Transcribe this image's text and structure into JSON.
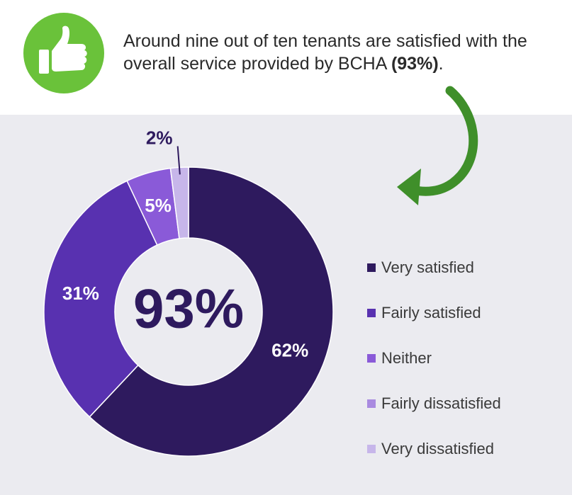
{
  "header": {
    "text": "Around nine out of ten tenants are satisfied with the overall service provided by BCHA",
    "highlight": "(93%)",
    "end": ".",
    "icon": "thumbs-up-icon",
    "arrow_icon": "curved-arrow-icon"
  },
  "colors": {
    "icon_green": "#6ac23a",
    "arrow_green": "#3f8f2a",
    "panel_bg": "#ebebf0"
  },
  "chart_data": {
    "type": "pie",
    "variant": "donut",
    "center_label": "93%",
    "categories": [
      "Very satisfied",
      "Fairly satisfied",
      "Neither",
      "Fairly dissatisfied",
      "Very dissatisfied"
    ],
    "values": [
      62,
      31,
      5,
      0,
      2
    ],
    "labels": [
      "62%",
      "31%",
      "5%",
      "",
      "2%"
    ],
    "colors": [
      "#2e1a5e",
      "#5831b0",
      "#8a5ad8",
      "#a98ae0",
      "#c7b6ea"
    ],
    "legend_position": "right"
  }
}
